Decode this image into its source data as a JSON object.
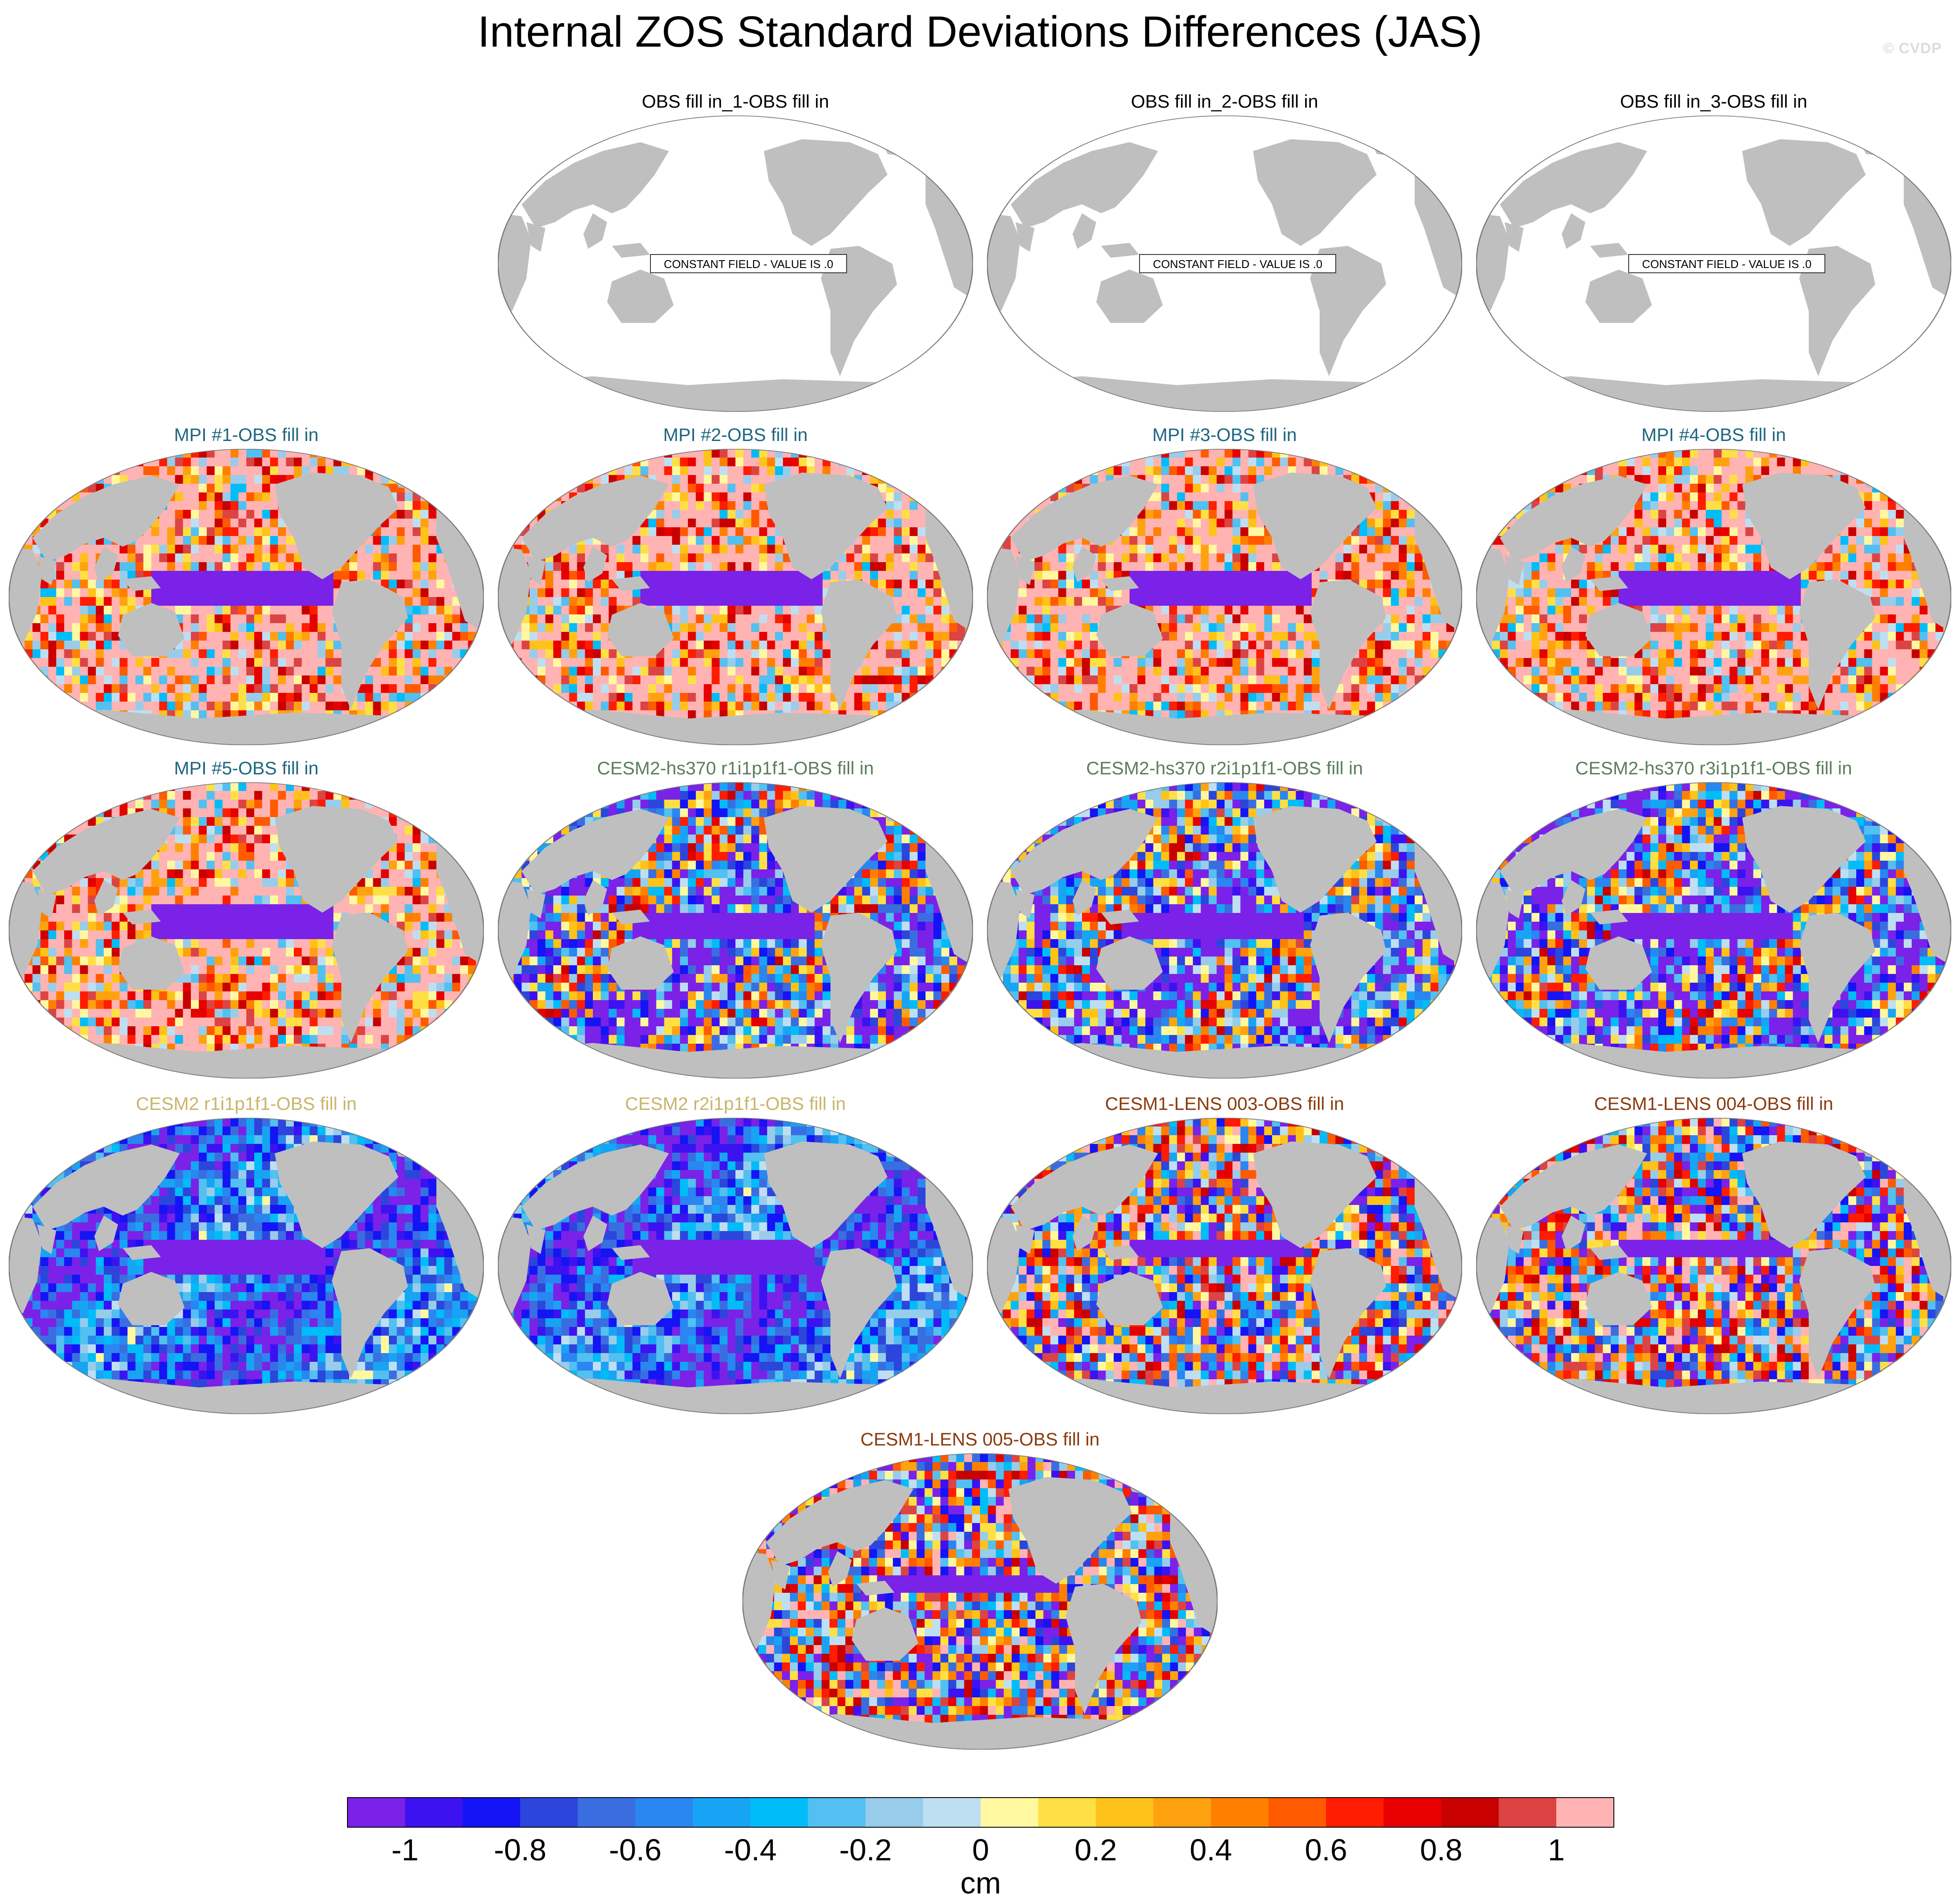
{
  "figure": {
    "title": "Internal ZOS Standard Deviations Differences (JAS)",
    "credit": "© CVDP"
  },
  "colors": {
    "land": "#bfbfbf",
    "ocean_blank": "#ffffff",
    "outline": "#7a7a7a",
    "title_obs": "#000000",
    "title_mpi": "#1f6680",
    "title_cesm2_hs370": "#5b7e5b",
    "title_cesm2": "#c9b56a",
    "title_cesm1_lens": "#8a3a0c"
  },
  "chart_data": {
    "type": "heatmap",
    "description_units": "cm",
    "colorbar": {
      "label": "cm",
      "tick_labels": [
        "-1",
        "-0.8",
        "-0.6",
        "-0.4",
        "-0.2",
        "0",
        "0.2",
        "0.4",
        "0.6",
        "0.8",
        "1"
      ],
      "tick_values": [
        -1,
        -0.8,
        -0.6,
        -0.4,
        -0.2,
        0,
        0.2,
        0.4,
        0.6,
        0.8,
        1
      ],
      "levels_range": [
        -1.1,
        1.1
      ],
      "bin_width": 0.1,
      "colors": [
        "#7a22e8",
        "#3d12f0",
        "#1414f4",
        "#2c46dc",
        "#3a6ee0",
        "#2a86f0",
        "#18a4f4",
        "#00bcf8",
        "#52c0f0",
        "#98cceb",
        "#bedff2",
        "#fff8a0",
        "#ffe044",
        "#ffc218",
        "#ffa210",
        "#ff8000",
        "#ff5a00",
        "#ff1c00",
        "#e60000",
        "#c80000",
        "#dc4444",
        "#ffb3b3"
      ]
    },
    "panels": [
      {
        "title": "OBS fill in_1-OBS fill in",
        "group": "obs",
        "pattern": "constant",
        "annotation": "CONSTANT FIELD - VALUE IS .0",
        "constant_value": 0
      },
      {
        "title": "OBS fill in_2-OBS fill in",
        "group": "obs",
        "pattern": "constant",
        "annotation": "CONSTANT FIELD - VALUE IS .0",
        "constant_value": 0
      },
      {
        "title": "OBS fill in_3-OBS fill in",
        "group": "obs",
        "pattern": "constant",
        "annotation": "CONSTANT FIELD - VALUE IS .0",
        "constant_value": 0
      },
      {
        "title": "MPI #1-OBS fill in",
        "group": "mpi",
        "pattern": "mpi",
        "seed": 11
      },
      {
        "title": "MPI #2-OBS fill in",
        "group": "mpi",
        "pattern": "mpi",
        "seed": 12
      },
      {
        "title": "MPI #3-OBS fill in",
        "group": "mpi",
        "pattern": "mpi",
        "seed": 13
      },
      {
        "title": "MPI #4-OBS fill in",
        "group": "mpi",
        "pattern": "mpi",
        "seed": 14
      },
      {
        "title": "MPI #5-OBS fill in",
        "group": "mpi",
        "pattern": "mpi",
        "seed": 15
      },
      {
        "title": "CESM2-hs370 r1i1p1f1-OBS fill in",
        "group": "cesm2_hs370",
        "pattern": "hs370",
        "seed": 21
      },
      {
        "title": "CESM2-hs370 r2i1p1f1-OBS fill in",
        "group": "cesm2_hs370",
        "pattern": "hs370",
        "seed": 22
      },
      {
        "title": "CESM2-hs370 r3i1p1f1-OBS fill in",
        "group": "cesm2_hs370",
        "pattern": "hs370",
        "seed": 23
      },
      {
        "title": "CESM2 r1i1p1f1-OBS fill in",
        "group": "cesm2",
        "pattern": "cesm2",
        "seed": 31
      },
      {
        "title": "CESM2 r2i1p1f1-OBS fill in",
        "group": "cesm2",
        "pattern": "cesm2",
        "seed": 32
      },
      {
        "title": "CESM1-LENS 003-OBS fill in",
        "group": "cesm1_lens",
        "pattern": "lens",
        "seed": 41
      },
      {
        "title": "CESM1-LENS 004-OBS fill in",
        "group": "cesm1_lens",
        "pattern": "lens",
        "seed": 42
      },
      {
        "title": "CESM1-LENS 005-OBS fill in",
        "group": "cesm1_lens",
        "pattern": "lens",
        "seed": 43
      }
    ]
  }
}
